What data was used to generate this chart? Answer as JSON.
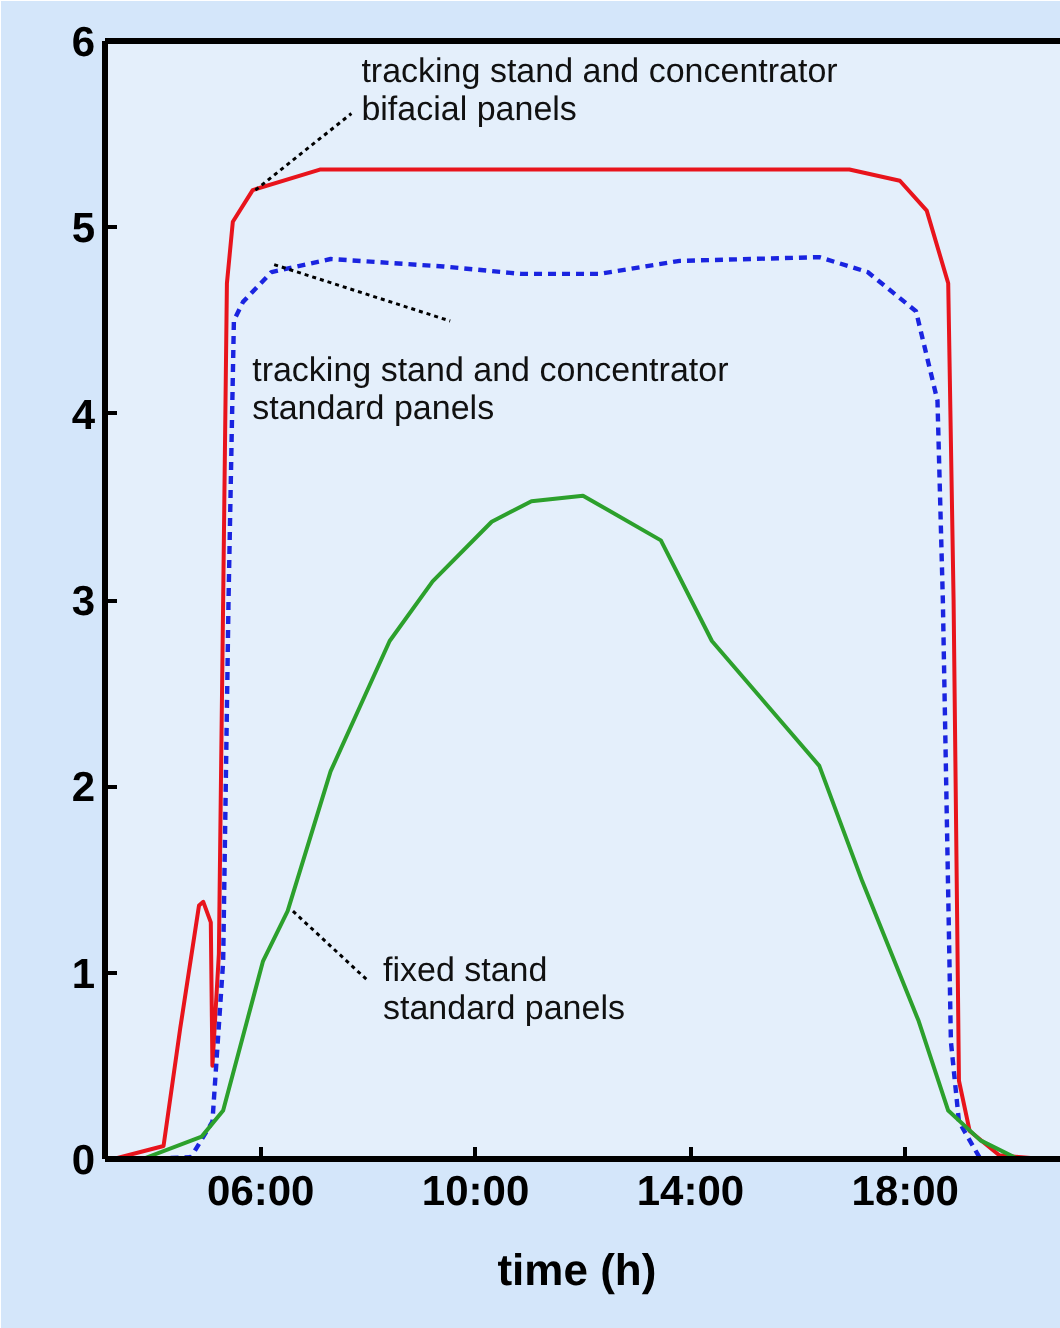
{
  "chart_data": {
    "type": "line",
    "xlabel": "time  (h)",
    "xlim": [
      3.1,
      20.9
    ],
    "ylim": [
      0,
      6
    ],
    "xticks": [
      {
        "value": 6,
        "label": "06:00"
      },
      {
        "value": 10,
        "label": "10:00"
      },
      {
        "value": 14,
        "label": "14:00"
      },
      {
        "value": 18,
        "label": "18:00"
      }
    ],
    "yticks": [
      0,
      1,
      2,
      3,
      4,
      5,
      6
    ],
    "series": [
      {
        "color": "#e8141c",
        "line_style": "solid",
        "x": [
          3.26,
          4.19,
          4.5,
          4.85,
          4.93,
          5.07,
          5.1,
          5.22,
          5.3,
          5.37,
          5.48,
          5.85,
          7.1,
          16.96,
          17.9,
          18.4,
          18.8,
          18.9,
          19.0,
          19.2,
          19.75,
          20.55
        ],
        "values": [
          0,
          0.07,
          0.7,
          1.36,
          1.38,
          1.27,
          0.5,
          1.1,
          3.0,
          4.7,
          5.03,
          5.2,
          5.31,
          5.31,
          5.25,
          5.09,
          4.7,
          3.0,
          0.42,
          0.15,
          0.02,
          0
        ]
      },
      {
        "color": "#1a24e0",
        "line_style": "dashed",
        "x": [
          3.8,
          4.7,
          5.1,
          5.3,
          5.4,
          5.5,
          5.67,
          6.2,
          7.3,
          9.4,
          10.85,
          12.3,
          13.8,
          16.4,
          17.3,
          18.2,
          18.6,
          18.7,
          18.85,
          19.0,
          19.4
        ],
        "values": [
          0,
          0.01,
          0.2,
          1.06,
          3.0,
          4.5,
          4.6,
          4.76,
          4.83,
          4.79,
          4.75,
          4.75,
          4.82,
          4.84,
          4.76,
          4.55,
          4.07,
          3.0,
          0.63,
          0.2,
          0
        ]
      },
      {
        "color": "#2ca02c",
        "line_style": "solid",
        "x": [
          3.8,
          4.9,
          5.3,
          6.04,
          6.5,
          7.3,
          8.4,
          9.2,
          10.3,
          11.04,
          12.0,
          13.45,
          14.4,
          16.4,
          17.2,
          18.25,
          18.8,
          19.4,
          20.1
        ],
        "values": [
          0,
          0.12,
          0.26,
          1.06,
          1.33,
          2.08,
          2.78,
          3.1,
          3.42,
          3.53,
          3.56,
          3.32,
          2.78,
          2.11,
          1.49,
          0.74,
          0.26,
          0.1,
          0
        ]
      }
    ],
    "annotations": [
      {
        "text": "tracking stand and concentrator\nbifacial panels",
        "x": 5.9,
        "y": 5.2
      },
      {
        "text": "tracking stand and concentrator\nstandard panels",
        "x": 6.25,
        "y": 4.8
      },
      {
        "text": "fixed stand\nstandard panels",
        "x": 6.6,
        "y": 1.33
      }
    ]
  }
}
